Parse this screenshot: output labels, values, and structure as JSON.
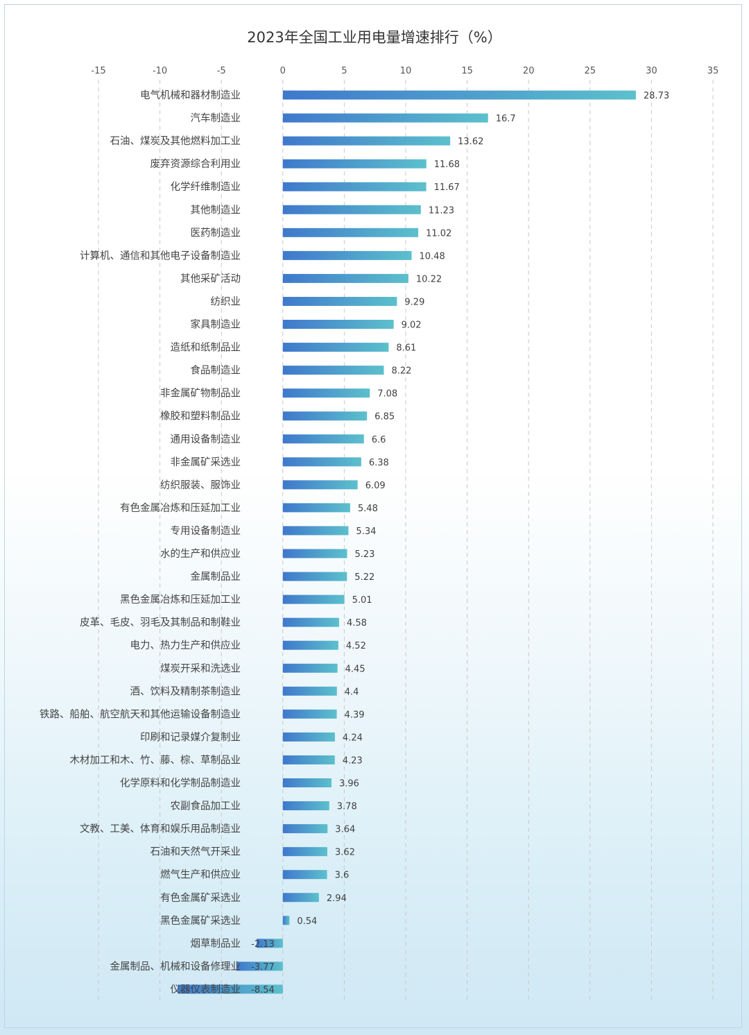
{
  "chart_data": {
    "type": "bar",
    "orientation": "horizontal",
    "title": "2023年全国工业用电量增速排行（%）",
    "xlim": [
      -15,
      35
    ],
    "xticks": [
      -15,
      -10,
      -5,
      0,
      5,
      10,
      15,
      20,
      25,
      30,
      35
    ],
    "grid": true,
    "colors": {
      "bar_start": "#3f78cc",
      "bar_end": "#5cc0cc",
      "grid": "#c8c8c8"
    },
    "categories": [
      "电气机械和器材制造业",
      "汽车制造业",
      "石油、煤炭及其他燃料加工业",
      "废弃资源综合利用业",
      "化学纤维制造业",
      "其他制造业",
      "医药制造业",
      "计算机、通信和其他电子设备制造业",
      "其他采矿活动",
      "纺织业",
      "家具制造业",
      "造纸和纸制品业",
      "食品制造业",
      "非金属矿物制品业",
      "橡胶和塑料制品业",
      "通用设备制造业",
      "非金属矿采选业",
      "纺织服装、服饰业",
      "有色金属冶炼和压延加工业",
      "专用设备制造业",
      "水的生产和供应业",
      "金属制品业",
      "黑色金属冶炼和压延加工业",
      "皮革、毛皮、羽毛及其制品和制鞋业",
      "电力、热力生产和供应业",
      "煤炭开采和洗选业",
      "酒、饮料及精制茶制造业",
      "铁路、船舶、航空航天和其他运输设备制造业",
      "印刷和记录媒介复制业",
      "木材加工和木、竹、藤、棕、草制品业",
      "化学原料和化学制品制造业",
      "农副食品加工业",
      "文教、工美、体育和娱乐用品制造业",
      "石油和天然气开采业",
      "燃气生产和供应业",
      "有色金属矿采选业",
      "黑色金属矿采选业",
      "烟草制品业",
      "金属制品、机械和设备修理业",
      "仪器仪表制造业"
    ],
    "values": [
      28.73,
      16.7,
      13.62,
      11.68,
      11.67,
      11.23,
      11.02,
      10.48,
      10.22,
      9.29,
      9.02,
      8.61,
      8.22,
      7.08,
      6.85,
      6.6,
      6.38,
      6.09,
      5.48,
      5.34,
      5.23,
      5.22,
      5.01,
      4.58,
      4.52,
      4.45,
      4.4,
      4.39,
      4.24,
      4.23,
      3.96,
      3.78,
      3.64,
      3.62,
      3.6,
      2.94,
      0.54,
      -2.13,
      -3.77,
      -8.54
    ],
    "value_labels": [
      "28.73",
      "16.7",
      "13.62",
      "11.68",
      "11.67",
      "11.23",
      "11.02",
      "10.48",
      "10.22",
      "9.29",
      "9.02",
      "8.61",
      "8.22",
      "7.08",
      "6.85",
      "6.6",
      "6.38",
      "6.09",
      "5.48",
      "5.34",
      "5.23",
      "5.22",
      "5.01",
      "4.58",
      "4.52",
      "4.45",
      "4.4",
      "4.39",
      "4.24",
      "4.23",
      "3.96",
      "3.78",
      "3.64",
      "3.62",
      "3.6",
      "2.94",
      "0.54",
      "-2.13",
      "-3.77",
      "-8.54"
    ]
  }
}
